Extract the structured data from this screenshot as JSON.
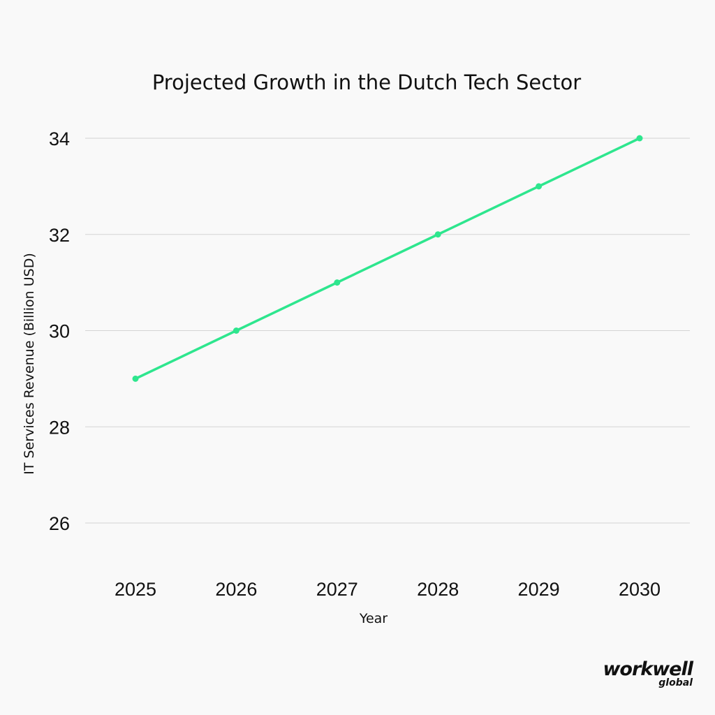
{
  "chart_data": {
    "type": "line",
    "title": "Projected Growth in the Dutch Tech Sector",
    "xlabel": "Year",
    "ylabel": "IT Services Revenue (Billion USD)",
    "x": [
      "2025",
      "2026",
      "2027",
      "2028",
      "2029",
      "2030"
    ],
    "series": [
      {
        "values": [
          29,
          30,
          31,
          32,
          33,
          34
        ]
      }
    ],
    "yticks": [
      26,
      28,
      30,
      32,
      34
    ],
    "ylim": [
      25,
      34.5
    ],
    "grid": true,
    "legend": "none",
    "line_color": "#2ee68e"
  },
  "branding": {
    "logo_main": "workwell",
    "logo_sub": "global"
  }
}
